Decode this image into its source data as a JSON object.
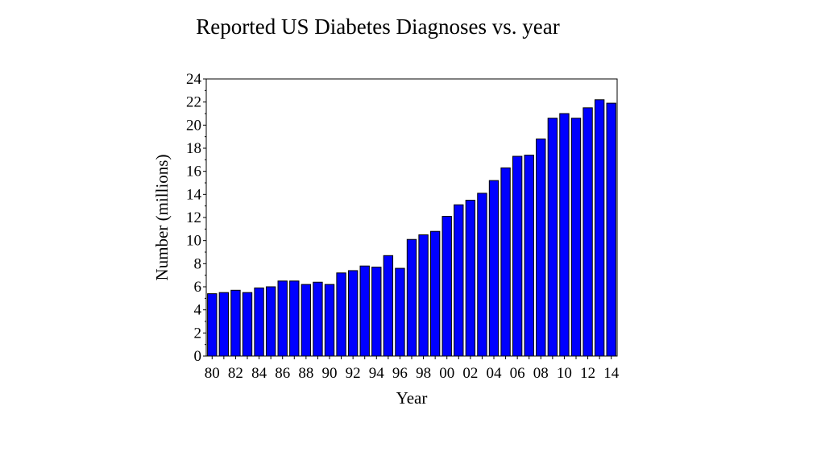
{
  "chart_data": {
    "type": "bar",
    "title": "Reported US Diabetes Diagnoses vs. year",
    "xlabel": "Year",
    "ylabel": "Number (millions)",
    "ylim": [
      0,
      24
    ],
    "yticks": [
      "0",
      "2",
      "4",
      "6",
      "8",
      "10",
      "12",
      "14",
      "16",
      "18",
      "20",
      "22",
      "24"
    ],
    "categories": [
      "80",
      "81",
      "82",
      "83",
      "84",
      "85",
      "86",
      "87",
      "88",
      "89",
      "90",
      "91",
      "92",
      "93",
      "94",
      "95",
      "96",
      "97",
      "98",
      "99",
      "00",
      "01",
      "02",
      "03",
      "04",
      "05",
      "06",
      "07",
      "08",
      "09",
      "10",
      "11",
      "12",
      "13",
      "14"
    ],
    "xtick_labels": [
      "80",
      "82",
      "84",
      "86",
      "88",
      "90",
      "92",
      "94",
      "96",
      "98",
      "00",
      "02",
      "04",
      "06",
      "08",
      "10",
      "12",
      "14"
    ],
    "values": [
      5.4,
      5.5,
      5.7,
      5.5,
      5.9,
      6.0,
      6.5,
      6.5,
      6.2,
      6.4,
      6.2,
      7.2,
      7.4,
      7.8,
      7.7,
      8.7,
      7.6,
      10.1,
      10.5,
      10.8,
      12.1,
      13.1,
      13.5,
      14.1,
      15.2,
      16.3,
      17.3,
      17.4,
      18.8,
      20.6,
      21.0,
      20.6,
      21.5,
      22.2,
      21.9
    ],
    "bar_color": "#0000ff",
    "grid": false,
    "legend": "none"
  }
}
